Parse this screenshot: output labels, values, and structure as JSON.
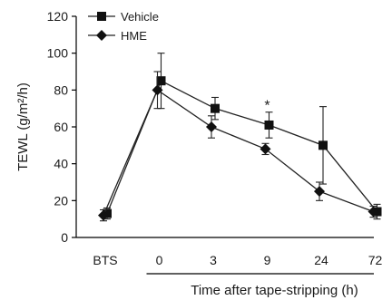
{
  "chart_data": {
    "type": "line",
    "ylabel": "TEWL (g/m²/h)",
    "xlabel": "Time after tape-stripping (h)",
    "ylim": [
      0,
      120
    ],
    "yticks": [
      0,
      20,
      40,
      60,
      80,
      100,
      120
    ],
    "categories": [
      "BTS",
      "0",
      "3",
      "9",
      "24",
      "72"
    ],
    "grid": false,
    "legend_position": "top-left",
    "series": [
      {
        "name": "Vehicle",
        "marker": "square",
        "values": [
          13,
          85,
          70,
          61,
          50,
          14
        ],
        "err": [
          3,
          15,
          6,
          7,
          21,
          4
        ]
      },
      {
        "name": "HME",
        "marker": "diamond",
        "values": [
          12,
          80,
          60,
          48,
          25,
          14
        ],
        "err": [
          3,
          10,
          6,
          3,
          5,
          3
        ]
      }
    ],
    "annotations": [
      {
        "text": "*",
        "category": "9",
        "y": 70
      }
    ]
  }
}
